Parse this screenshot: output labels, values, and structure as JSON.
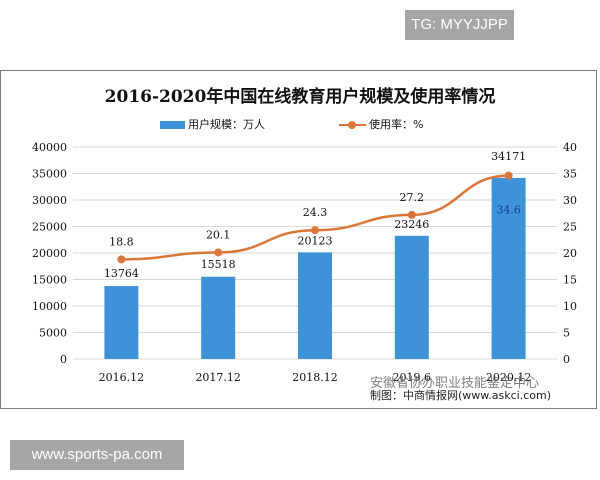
{
  "watermark_top": "TG: MYYJJPP",
  "watermark_bottom": "www.sports-pa.com",
  "overlay_text": "安徽省协办职业技能鉴定中心",
  "source": "制图：中商情报网(www.askci.com)",
  "legend": {
    "bar_label": "用户规模：万人",
    "line_label": "使用率：%"
  },
  "colors": {
    "bar": "#3e93d8",
    "line": "#d9773a",
    "grid": "#d9d9d9"
  },
  "chart_data": {
    "type": "bar",
    "title": "2016-2020年中国在线教育用户规模及使用率情况",
    "categories": [
      "2016.12",
      "2017.12",
      "2018.12",
      "2019.6",
      "2020.12"
    ],
    "series": [
      {
        "name": "用户规模：万人",
        "type": "bar",
        "axis": "left",
        "values": [
          13764,
          15518,
          20123,
          23246,
          34171
        ]
      },
      {
        "name": "使用率：%",
        "type": "line",
        "axis": "right",
        "values": [
          18.8,
          20.1,
          24.3,
          27.2,
          34.6
        ]
      }
    ],
    "xlabel": "",
    "ylabel": "",
    "ylim": [
      0,
      40000
    ],
    "y2lim": [
      0,
      40
    ],
    "yticks": [
      0,
      5000,
      10000,
      15000,
      20000,
      25000,
      30000,
      35000,
      40000
    ],
    "y2ticks": [
      0,
      5,
      10,
      15,
      20,
      25,
      30,
      35,
      40
    ],
    "grid": true,
    "legend_position": "top"
  }
}
